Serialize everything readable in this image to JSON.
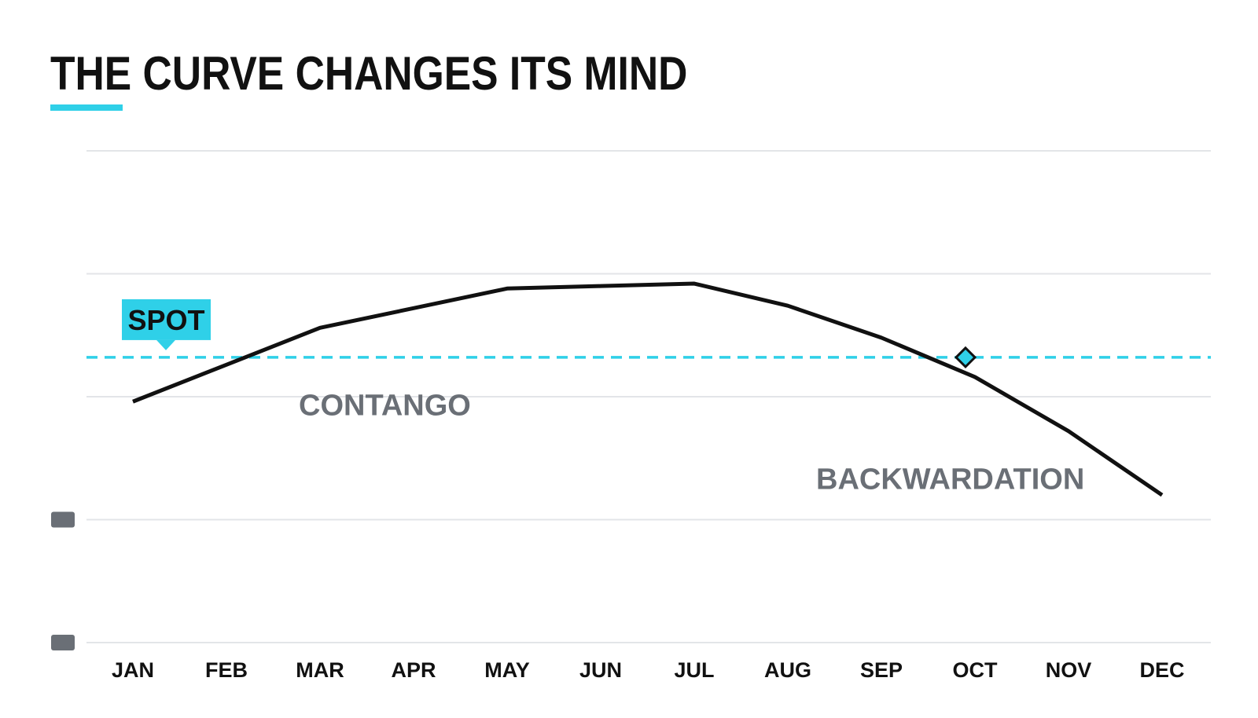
{
  "title": "THE CURVE CHANGES ITS MIND",
  "colors": {
    "accent": "#2fd0e8",
    "curve": "#111111",
    "grid": "#e3e5e8",
    "region_label": "#6a6f76",
    "axis_marker": "#6a6f76"
  },
  "chart_data": {
    "type": "line",
    "title": "THE CURVE CHANGES ITS MIND",
    "categories": [
      "JAN",
      "FEB",
      "MAR",
      "APR",
      "MAY",
      "JUN",
      "JUL",
      "AUG",
      "SEP",
      "OCT",
      "NOV",
      "DEC"
    ],
    "series": [
      {
        "values": [
          49.0,
          56.5,
          64.0,
          68.0,
          72.0,
          72.5,
          73.0,
          68.5,
          62.0,
          54.0,
          43.0,
          30.0
        ]
      }
    ],
    "reference_line": {
      "label": "SPOT",
      "value": 58.0,
      "style": "dashed"
    },
    "crossing_marker": {
      "category": "OCT",
      "value": 58.0,
      "shape": "diamond"
    },
    "annotations": [
      {
        "text": "CONTANGO",
        "category": "MAR",
        "value": 48.5
      },
      {
        "text": "BACKWARDATION",
        "category": "AUG",
        "value": 33.5
      }
    ],
    "ylim": [
      0,
      100
    ],
    "gridlines": [
      0,
      25,
      50,
      75,
      100
    ],
    "y_tick_labels": [
      "",
      ""
    ],
    "xlabel": "",
    "ylabel": "",
    "grid": true,
    "legend": false
  }
}
